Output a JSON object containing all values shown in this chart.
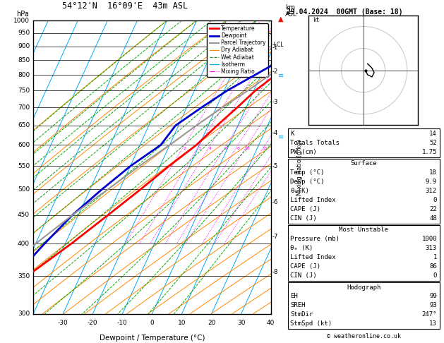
{
  "title_station": "54°12'N  16°09'E  43m ASL",
  "date_str": "29.04.2024  00GMT (Base: 18)",
  "xlabel": "Dewpoint / Temperature (°C)",
  "pressure_levels": [
    300,
    350,
    400,
    450,
    500,
    550,
    600,
    650,
    700,
    750,
    800,
    850,
    900,
    950,
    1000
  ],
  "temp_xlim": [
    -40,
    40
  ],
  "temp_xticks": [
    -30,
    -20,
    -10,
    0,
    10,
    20,
    30,
    40
  ],
  "lcl_pressure": 905,
  "colors": {
    "temperature": "#ff0000",
    "dewpoint": "#0000cc",
    "parcel": "#999999",
    "dry_adiabat": "#ff8800",
    "wet_adiabat": "#00aa00",
    "isotherm": "#00aaff",
    "mixing_ratio": "#ff00ff",
    "background": "#ffffff",
    "grid": "#000000"
  },
  "temperature_profile": {
    "pressure": [
      1000,
      950,
      900,
      850,
      800,
      750,
      700,
      650,
      600,
      550,
      500,
      450,
      400,
      350,
      300
    ],
    "temperature": [
      18,
      15.5,
      12.5,
      9,
      5,
      0.5,
      -3,
      -7,
      -11,
      -17,
      -23,
      -30,
      -38,
      -48,
      -56
    ]
  },
  "dewpoint_profile": {
    "pressure": [
      1000,
      950,
      900,
      850,
      800,
      750,
      700,
      650,
      600,
      550,
      500,
      450,
      400,
      350,
      300
    ],
    "dewpoint": [
      9.9,
      8.5,
      7.5,
      4.5,
      -2,
      -9,
      -15,
      -21,
      -23,
      -30,
      -36,
      -42,
      -47,
      -52,
      -57
    ]
  },
  "parcel_profile": {
    "pressure": [
      1000,
      950,
      900,
      850,
      800,
      750,
      700,
      650,
      600,
      550,
      500,
      450,
      400,
      350,
      300
    ],
    "temperature": [
      18,
      14.5,
      11,
      7,
      3,
      -2,
      -8,
      -14,
      -20,
      -27,
      -34,
      -42,
      -50,
      -58,
      -65
    ]
  },
  "info_table": {
    "K": 14,
    "Totals_Totals": 52,
    "PW_cm": 1.75,
    "Surface_Temp": 18,
    "Surface_Dewp": 9.9,
    "Surface_theta_e": 312,
    "Surface_LI": 0,
    "Surface_CAPE": 22,
    "Surface_CIN": 48,
    "MU_Pressure": 1000,
    "MU_theta_e": 313,
    "MU_LI": 1,
    "MU_CAPE": 86,
    "MU_CIN": 0,
    "EH": 99,
    "SREH": 93,
    "StmDir": 247,
    "StmSpd": 13
  },
  "mr_values": [
    2,
    3,
    4,
    6,
    8,
    10,
    15,
    20,
    25
  ],
  "km_levels": [
    8,
    7,
    6,
    5,
    4,
    3,
    2,
    1
  ],
  "km_pressures": [
    356,
    412,
    475,
    550,
    630,
    715,
    812,
    895
  ],
  "legend_entries": [
    {
      "label": "Temperature",
      "color": "#ff0000",
      "lw": 2.0,
      "ls": "-",
      "marker": ""
    },
    {
      "label": "Dewpoint",
      "color": "#0000cc",
      "lw": 2.0,
      "ls": "-",
      "marker": ""
    },
    {
      "label": "Parcel Trajectory",
      "color": "#999999",
      "lw": 1.5,
      "ls": "-",
      "marker": ""
    },
    {
      "label": "Dry Adiabat",
      "color": "#ff8800",
      "lw": 0.8,
      "ls": "-",
      "marker": ""
    },
    {
      "label": "Wet Adiabat",
      "color": "#00aa00",
      "lw": 0.8,
      "ls": "--",
      "marker": ""
    },
    {
      "label": "Isotherm",
      "color": "#00aaff",
      "lw": 0.8,
      "ls": "-",
      "marker": ""
    },
    {
      "label": "Mixing Ratio",
      "color": "#ff00ff",
      "lw": 0.8,
      "ls": "-.",
      "marker": ""
    }
  ]
}
